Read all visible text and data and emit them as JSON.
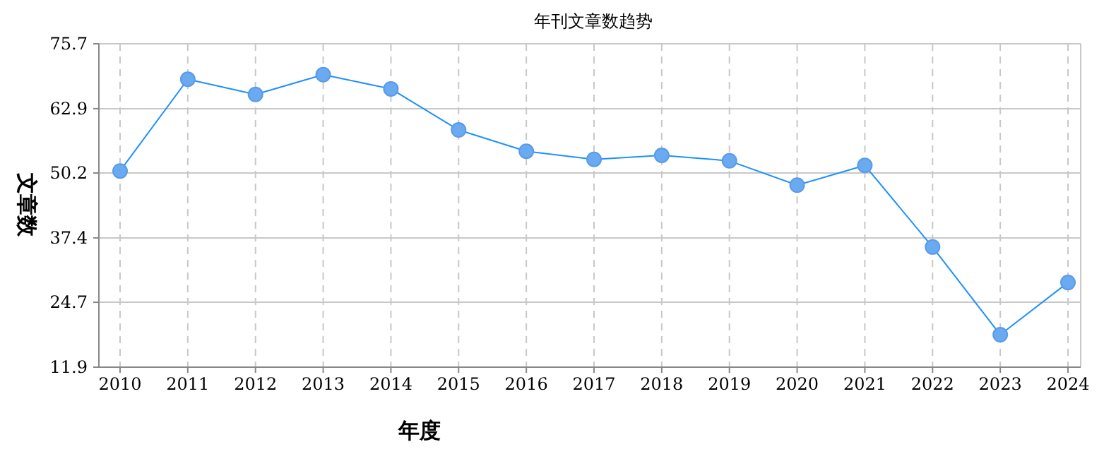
{
  "chart_data": {
    "type": "line",
    "title": "年刊文章数趋势",
    "xlabel": "年度",
    "ylabel": "文章数",
    "categories": [
      "2010",
      "2011",
      "2012",
      "2013",
      "2014",
      "2015",
      "2016",
      "2017",
      "2018",
      "2019",
      "2020",
      "2021",
      "2022",
      "2023",
      "2024"
    ],
    "series": [
      {
        "color": "#1e90ff",
        "values": [
          50.6,
          68.7,
          65.7,
          69.6,
          66.8,
          58.7,
          54.5,
          52.9,
          53.7,
          52.6,
          47.8,
          51.7,
          35.6,
          18.3,
          28.6
        ]
      }
    ],
    "ylim": [
      11.9,
      75.7
    ],
    "yticks": [
      11.9,
      24.7,
      37.4,
      50.2,
      62.9,
      75.7
    ],
    "grid": true,
    "marker": "circle",
    "line_style": "solid"
  }
}
